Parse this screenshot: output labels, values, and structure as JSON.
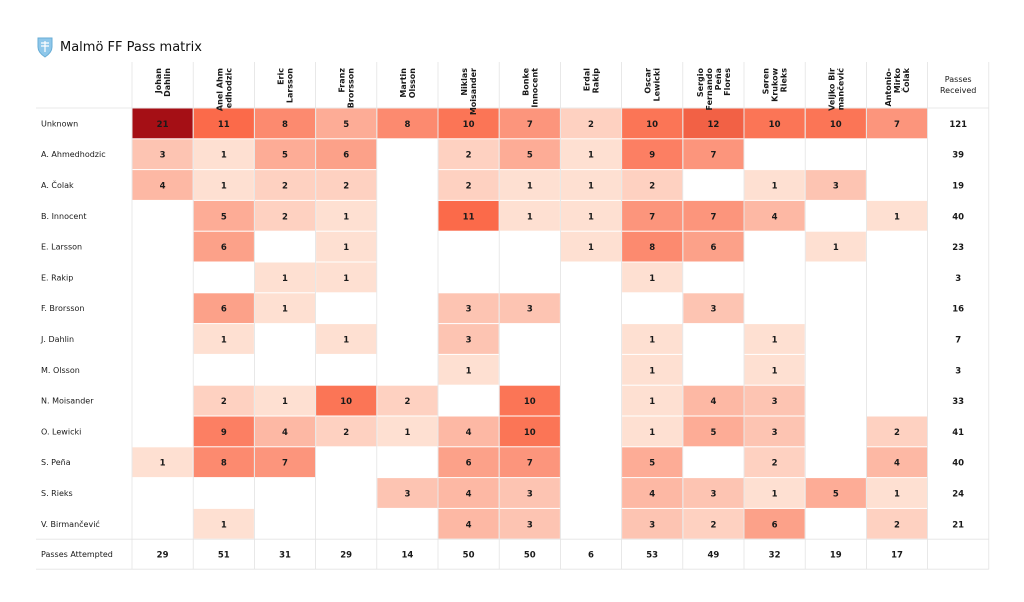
{
  "chart_data": {
    "type": "heatmap",
    "title": "Malmö FF Pass matrix",
    "columns": [
      [
        "Johan",
        "Dahlin"
      ],
      [
        "Anel Ahm",
        "edhodzic"
      ],
      [
        "Eric",
        "Larsson"
      ],
      [
        "Franz",
        "Brorsson"
      ],
      [
        "Martin",
        "Olsson"
      ],
      [
        "Niklas",
        "Moisander"
      ],
      [
        "Bonke",
        "Innocent"
      ],
      [
        "Erdal",
        "Rakip"
      ],
      [
        "Oscar",
        "Lewicki"
      ],
      [
        "Sergio",
        "Fernando",
        "Peña",
        "Flores"
      ],
      [
        "Søren",
        "Krukow",
        "Rieks"
      ],
      [
        "Veljko Bir",
        "mančević"
      ],
      [
        "Antonio-",
        "Mirko",
        "Čolak"
      ]
    ],
    "total_column_label": [
      "Passes",
      "Received"
    ],
    "rows": [
      "Unknown",
      "A. Ahmedhodzic",
      "A. Čolak",
      "B. Innocent",
      "E. Larsson",
      "E. Rakip",
      "F. Brorsson",
      "J. Dahlin",
      "M. Olsson",
      "N. Moisander",
      "O. Lewicki",
      "S. Peña",
      "S. Rieks",
      "V. Birmančević"
    ],
    "values": [
      [
        21,
        11,
        8,
        5,
        8,
        10,
        7,
        2,
        10,
        12,
        10,
        10,
        7
      ],
      [
        3,
        1,
        5,
        6,
        null,
        2,
        5,
        1,
        9,
        7,
        null,
        null,
        null
      ],
      [
        4,
        1,
        2,
        2,
        null,
        2,
        1,
        1,
        2,
        null,
        1,
        3,
        null
      ],
      [
        null,
        5,
        2,
        1,
        null,
        11,
        1,
        1,
        7,
        7,
        4,
        null,
        1
      ],
      [
        null,
        6,
        null,
        1,
        null,
        null,
        null,
        1,
        8,
        6,
        null,
        1,
        null
      ],
      [
        null,
        null,
        1,
        1,
        null,
        null,
        null,
        null,
        1,
        null,
        null,
        null,
        null
      ],
      [
        null,
        6,
        1,
        null,
        null,
        3,
        3,
        null,
        null,
        3,
        null,
        null,
        null
      ],
      [
        null,
        1,
        null,
        1,
        null,
        3,
        null,
        null,
        1,
        null,
        1,
        null,
        null
      ],
      [
        null,
        null,
        null,
        null,
        null,
        1,
        null,
        null,
        1,
        null,
        1,
        null,
        null
      ],
      [
        null,
        2,
        1,
        10,
        2,
        null,
        10,
        null,
        1,
        4,
        3,
        null,
        null
      ],
      [
        null,
        9,
        4,
        2,
        1,
        4,
        10,
        null,
        1,
        5,
        3,
        null,
        2
      ],
      [
        1,
        8,
        7,
        null,
        null,
        6,
        7,
        null,
        5,
        null,
        2,
        null,
        4
      ],
      [
        null,
        null,
        null,
        null,
        3,
        4,
        3,
        null,
        4,
        3,
        1,
        5,
        1
      ],
      [
        null,
        1,
        null,
        null,
        null,
        4,
        3,
        null,
        3,
        2,
        6,
        null,
        2
      ]
    ],
    "passes_received": [
      121,
      39,
      19,
      40,
      23,
      3,
      16,
      7,
      3,
      33,
      41,
      40,
      24,
      21
    ],
    "passes_attempted_label": "Passes Attempted",
    "passes_attempted": [
      29,
      51,
      31,
      29,
      14,
      50,
      50,
      6,
      53,
      49,
      32,
      19,
      17
    ],
    "colorscale": {
      "min": 1,
      "max": 21,
      "low": "#fee0d2",
      "mid": "#fb6a4a",
      "high": "#a50f15"
    }
  }
}
